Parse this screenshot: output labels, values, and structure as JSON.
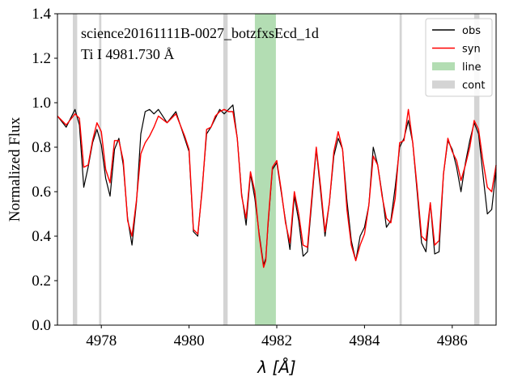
{
  "chart_data": {
    "type": "line",
    "annotation_lines": [
      "science20161111B-0027_botzfxsEcd_1d",
      "Ti I 4981.730 Å"
    ],
    "xlabel": "λ [Å]",
    "ylabel": "Normalized Flux",
    "xlim": [
      4977.0,
      4987.0
    ],
    "ylim": [
      0.0,
      1.4
    ],
    "x_ticks": [
      4978,
      4980,
      4982,
      4984,
      4986
    ],
    "y_ticks": [
      0.0,
      0.2,
      0.4,
      0.6,
      0.8,
      1.0,
      1.2,
      1.4
    ],
    "grid": false,
    "legend_position": "top-right",
    "legend": [
      {
        "label": "obs",
        "kind": "line",
        "color": "#000000"
      },
      {
        "label": "syn",
        "kind": "line",
        "color": "#ff0000"
      },
      {
        "label": "line",
        "kind": "patch",
        "color": "#2ca02c"
      },
      {
        "label": "cont",
        "kind": "patch",
        "color": "#a9a9a9"
      }
    ],
    "line_region": [
      4981.5,
      4981.98
    ],
    "cont_regions": [
      [
        4977.35,
        4977.45
      ],
      [
        4977.95,
        4978.0
      ],
      [
        4980.78,
        4980.88
      ],
      [
        4984.8,
        4984.85
      ],
      [
        4986.5,
        4986.62
      ]
    ],
    "series": [
      {
        "name": "obs",
        "color": "#000000",
        "x": [
          4977.0,
          4977.2,
          4977.4,
          4977.5,
          4977.6,
          4977.7,
          4977.8,
          4977.9,
          4978.0,
          4978.1,
          4978.2,
          4978.3,
          4978.4,
          4978.5,
          4978.6,
          4978.7,
          4978.8,
          4978.9,
          4979.0,
          4979.1,
          4979.2,
          4979.3,
          4979.5,
          4979.7,
          4979.9,
          4980.0,
          4980.1,
          4980.2,
          4980.3,
          4980.4,
          4980.5,
          4980.6,
          4980.7,
          4980.8,
          4980.9,
          4981.0,
          4981.1,
          4981.2,
          4981.3,
          4981.4,
          4981.5,
          4981.6,
          4981.7,
          4981.75,
          4981.8,
          4981.9,
          4982.0,
          4982.1,
          4982.2,
          4982.3,
          4982.4,
          4982.5,
          4982.6,
          4982.7,
          4982.8,
          4982.9,
          4983.0,
          4983.1,
          4983.2,
          4983.3,
          4983.4,
          4983.5,
          4983.6,
          4983.7,
          4983.8,
          4983.9,
          4984.0,
          4984.1,
          4984.2,
          4984.3,
          4984.4,
          4984.5,
          4984.6,
          4984.7,
          4984.8,
          4984.9,
          4985.0,
          4985.1,
          4985.2,
          4985.3,
          4985.4,
          4985.5,
          4985.6,
          4985.7,
          4985.8,
          4985.9,
          4986.0,
          4986.1,
          4986.2,
          4986.3,
          4986.4,
          4986.5,
          4986.6,
          4986.7,
          4986.8,
          4986.9,
          4987.0
        ],
        "y": [
          0.94,
          0.89,
          0.97,
          0.9,
          0.62,
          0.71,
          0.82,
          0.88,
          0.81,
          0.66,
          0.58,
          0.79,
          0.84,
          0.72,
          0.48,
          0.36,
          0.55,
          0.86,
          0.96,
          0.97,
          0.95,
          0.97,
          0.91,
          0.96,
          0.84,
          0.78,
          0.42,
          0.4,
          0.62,
          0.86,
          0.89,
          0.93,
          0.97,
          0.95,
          0.97,
          0.99,
          0.84,
          0.59,
          0.45,
          0.68,
          0.57,
          0.41,
          0.27,
          0.3,
          0.45,
          0.7,
          0.73,
          0.6,
          0.47,
          0.34,
          0.58,
          0.47,
          0.31,
          0.33,
          0.56,
          0.79,
          0.6,
          0.4,
          0.55,
          0.76,
          0.84,
          0.79,
          0.56,
          0.38,
          0.29,
          0.4,
          0.44,
          0.54,
          0.8,
          0.72,
          0.59,
          0.44,
          0.47,
          0.62,
          0.8,
          0.84,
          0.92,
          0.82,
          0.6,
          0.37,
          0.33,
          0.55,
          0.32,
          0.33,
          0.68,
          0.83,
          0.79,
          0.71,
          0.6,
          0.73,
          0.83,
          0.91,
          0.86,
          0.68,
          0.5,
          0.52,
          0.7
        ]
      },
      {
        "name": "syn",
        "color": "#ff0000",
        "x": [
          4977.0,
          4977.2,
          4977.4,
          4977.5,
          4977.6,
          4977.7,
          4977.8,
          4977.9,
          4978.0,
          4978.1,
          4978.2,
          4978.3,
          4978.4,
          4978.5,
          4978.6,
          4978.7,
          4978.8,
          4978.9,
          4979.0,
          4979.1,
          4979.2,
          4979.3,
          4979.5,
          4979.7,
          4979.9,
          4980.0,
          4980.1,
          4980.2,
          4980.3,
          4980.4,
          4980.5,
          4980.6,
          4980.7,
          4980.8,
          4980.9,
          4981.0,
          4981.1,
          4981.2,
          4981.3,
          4981.4,
          4981.5,
          4981.6,
          4981.7,
          4981.75,
          4981.8,
          4981.9,
          4982.0,
          4982.1,
          4982.2,
          4982.3,
          4982.4,
          4982.5,
          4982.6,
          4982.7,
          4982.8,
          4982.9,
          4983.0,
          4983.1,
          4983.2,
          4983.3,
          4983.4,
          4983.5,
          4983.6,
          4983.7,
          4983.8,
          4983.9,
          4984.0,
          4984.1,
          4984.2,
          4984.3,
          4984.4,
          4984.5,
          4984.6,
          4984.7,
          4984.8,
          4984.9,
          4985.0,
          4985.1,
          4985.2,
          4985.3,
          4985.4,
          4985.5,
          4985.6,
          4985.7,
          4985.8,
          4985.9,
          4986.0,
          4986.1,
          4986.2,
          4986.3,
          4986.4,
          4986.5,
          4986.6,
          4986.7,
          4986.8,
          4986.9,
          4987.0
        ],
        "y": [
          0.94,
          0.9,
          0.95,
          0.93,
          0.71,
          0.72,
          0.83,
          0.91,
          0.87,
          0.7,
          0.64,
          0.83,
          0.83,
          0.74,
          0.47,
          0.4,
          0.56,
          0.77,
          0.82,
          0.85,
          0.89,
          0.94,
          0.91,
          0.95,
          0.85,
          0.79,
          0.43,
          0.41,
          0.61,
          0.88,
          0.89,
          0.94,
          0.96,
          0.97,
          0.96,
          0.96,
          0.84,
          0.58,
          0.48,
          0.69,
          0.6,
          0.4,
          0.26,
          0.29,
          0.46,
          0.71,
          0.74,
          0.61,
          0.46,
          0.37,
          0.6,
          0.5,
          0.36,
          0.35,
          0.58,
          0.8,
          0.62,
          0.42,
          0.55,
          0.78,
          0.87,
          0.79,
          0.52,
          0.36,
          0.29,
          0.36,
          0.41,
          0.54,
          0.76,
          0.72,
          0.58,
          0.48,
          0.46,
          0.57,
          0.82,
          0.83,
          0.97,
          0.82,
          0.62,
          0.4,
          0.38,
          0.55,
          0.36,
          0.38,
          0.68,
          0.84,
          0.78,
          0.74,
          0.65,
          0.72,
          0.8,
          0.92,
          0.88,
          0.74,
          0.62,
          0.6,
          0.72
        ]
      }
    ]
  }
}
